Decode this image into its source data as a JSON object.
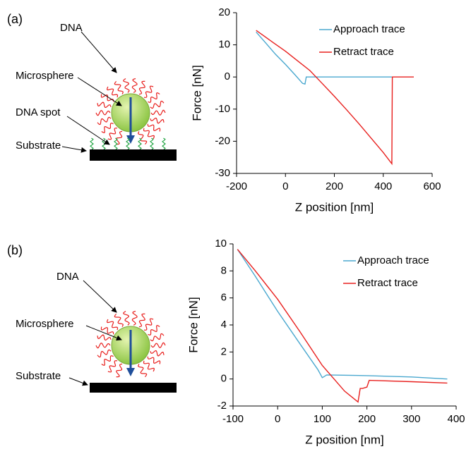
{
  "chart_data": [
    {
      "type": "line",
      "panel_label": "(a)",
      "diagram_labels": [
        "DNA",
        "Microsphere",
        "DNA spot",
        "Substrate"
      ],
      "x_label": "Z position [nm]",
      "y_label": "Force [nN]",
      "xlim": [
        -200,
        600
      ],
      "xticks": [
        -200,
        0,
        200,
        400,
        600
      ],
      "ylim": [
        -30,
        20
      ],
      "yticks": [
        -30,
        -20,
        -10,
        0,
        10,
        20
      ],
      "legend": "upper right",
      "series": [
        {
          "name": "Approach trace",
          "color": "#4aa8cf",
          "x": [
            -120,
            -80,
            -40,
            0,
            40,
            70,
            80,
            85,
            200,
            300,
            435
          ],
          "values": [
            14,
            10.5,
            7,
            3.9,
            0.6,
            -2,
            -2.2,
            0,
            0,
            0,
            0
          ]
        },
        {
          "name": "Retract trace",
          "color": "#e8201e",
          "x": [
            -120,
            -50,
            0,
            50,
            100,
            150,
            200,
            250,
            300,
            350,
            400,
            435,
            437,
            525
          ],
          "values": [
            14.5,
            10.7,
            8,
            5,
            2,
            -2,
            -6,
            -10.2,
            -14.5,
            -19,
            -23.5,
            -27,
            0,
            0
          ]
        }
      ]
    },
    {
      "type": "line",
      "panel_label": "(b)",
      "diagram_labels": [
        "DNA",
        "Microsphere",
        "Substrate"
      ],
      "x_label": "Z position [nm]",
      "y_label": "Force [nN]",
      "xlim": [
        -100,
        400
      ],
      "xticks": [
        -100,
        0,
        100,
        200,
        300,
        400
      ],
      "ylim": [
        -2,
        10
      ],
      "yticks": [
        -2,
        0,
        2,
        4,
        6,
        8,
        10
      ],
      "legend": "upper right",
      "series": [
        {
          "name": "Approach trace",
          "color": "#4aa8cf",
          "x": [
            -90,
            -50,
            0,
            50,
            90,
            100,
            110,
            200,
            300,
            380
          ],
          "values": [
            9.6,
            7.6,
            5.0,
            2.6,
            0.7,
            0.1,
            0.3,
            0.25,
            0.15,
            0.0
          ]
        },
        {
          "name": "Retract trace",
          "color": "#e8201e",
          "x": [
            -90,
            -50,
            0,
            50,
            100,
            150,
            180,
            185,
            190,
            200,
            205,
            300,
            380
          ],
          "values": [
            9.6,
            8.0,
            5.9,
            3.5,
            1.0,
            -0.9,
            -1.7,
            -0.7,
            -0.7,
            -0.6,
            -0.1,
            -0.2,
            -0.3
          ]
        }
      ]
    }
  ]
}
